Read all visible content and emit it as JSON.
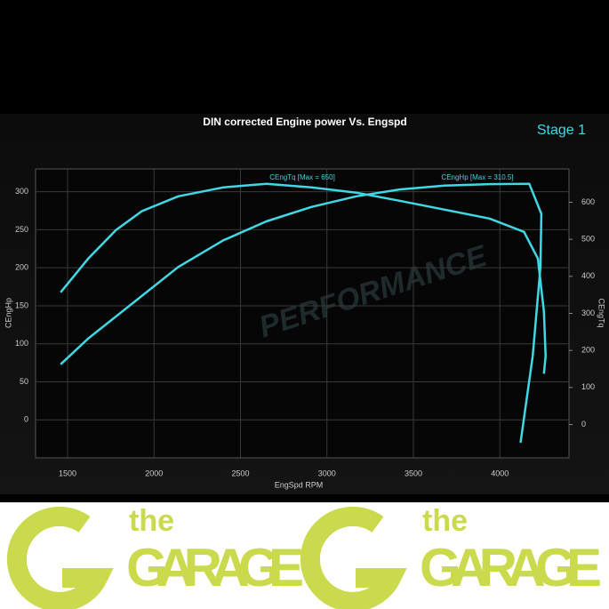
{
  "chart_data": {
    "type": "line",
    "title": "DIN corrected Engine power Vs. Engspd",
    "subtitle": "Stage 1",
    "watermark": "PERFORMANCE",
    "x_label": "EngSpd RPM",
    "y_label": "CEngHp",
    "y2_label": "CEngTq",
    "annotations": [
      "CEngTq [Max = 650]",
      "CEngHp [Max = 310.5]"
    ],
    "xlim": [
      1315,
      4400
    ],
    "xticks": [
      1500,
      2000,
      2500,
      3000,
      3500,
      4000
    ],
    "ylim": [
      -50,
      330
    ],
    "yticks": [
      0,
      50,
      100,
      150,
      200,
      250,
      300
    ],
    "y2lim": [
      -90,
      690
    ],
    "y2ticks": [
      0,
      100,
      200,
      300,
      400,
      500,
      600
    ],
    "grid": true,
    "series": [
      {
        "name": "CEngHp",
        "color": "#3fd8e4",
        "x": [
          1460,
          1620,
          1880,
          2140,
          2400,
          2650,
          2910,
          3170,
          3420,
          3680,
          3940,
          4170,
          4240,
          4235,
          4190,
          4120
        ],
        "values": [
          73,
          107,
          154,
          201,
          236,
          261,
          280,
          294,
          303,
          308,
          310,
          310.5,
          271,
          201,
          84,
          -30
        ]
      },
      {
        "name": "CEngTq",
        "color": "#3fd8e4",
        "axis": "y2",
        "x": [
          1460,
          1620,
          1780,
          1930,
          2140,
          2400,
          2650,
          2910,
          3170,
          3420,
          3680,
          3940,
          4140,
          4220,
          4255,
          4265,
          4255
        ],
        "values": [
          357,
          448,
          525,
          576,
          616,
          640,
          650,
          640,
          626,
          604,
          580,
          556,
          520,
          448,
          305,
          185,
          137
        ]
      }
    ]
  },
  "banner": {
    "small": "the",
    "big": "GARAGE"
  }
}
